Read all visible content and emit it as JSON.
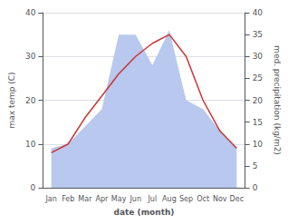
{
  "chart_data": {
    "type": "line",
    "categories": [
      "Jan",
      "Feb",
      "Mar",
      "Apr",
      "May",
      "Jun",
      "Jul",
      "Aug",
      "Sep",
      "Oct",
      "Nov",
      "Dec"
    ],
    "xlabel": "date (month)",
    "ylabel": "max temp (C)",
    "y2label": "med. precipitation (kg/m2)",
    "series": [
      {
        "type": "area",
        "axis": "y2",
        "color": "#b8c8ee",
        "values": [
          9,
          10,
          14,
          18,
          35,
          35,
          28,
          36,
          20,
          18,
          13,
          9
        ]
      },
      {
        "type": "line",
        "color": "#cc3333",
        "values": [
          8,
          10,
          16,
          21,
          26,
          30,
          33,
          35,
          30,
          20,
          13,
          9
        ]
      }
    ],
    "ylim": [
      0,
      40
    ],
    "yticks": [
      0,
      10,
      20,
      30,
      40
    ],
    "y2lim": [
      0,
      40
    ],
    "y2ticks": [
      0,
      5,
      10,
      15,
      20,
      25,
      30,
      35,
      40
    ],
    "grid": true
  }
}
